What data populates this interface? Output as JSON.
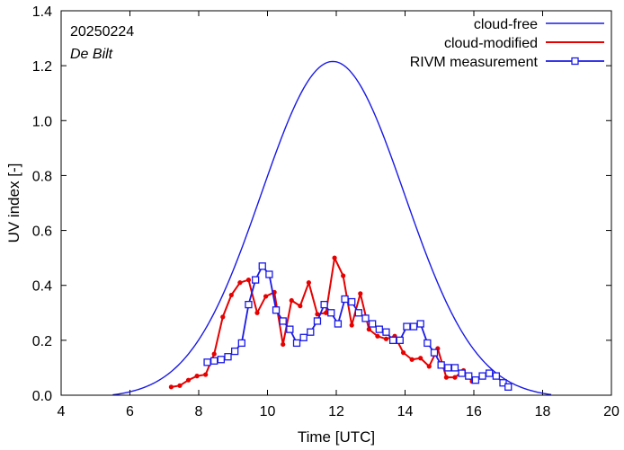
{
  "chart_data": {
    "type": "line",
    "annotations": {
      "date": "20250224",
      "station": "De Bilt"
    },
    "xlabel": "Time  [UTC]",
    "ylabel": "UV index  [-]",
    "xlim": [
      4,
      20
    ],
    "ylim": [
      0.0,
      1.4
    ],
    "x_ticks": [
      "4",
      "6",
      "8",
      "10",
      "12",
      "14",
      "16",
      "18",
      "20"
    ],
    "y_ticks": [
      "0.0",
      "0.2",
      "0.4",
      "0.6",
      "0.8",
      "1.0",
      "1.2",
      "1.4"
    ],
    "legend_position": "top-right",
    "colors": {
      "cloud_free": "#1a1ae6",
      "cloud_modified": "#e60000",
      "rivm": "#1a1ae6"
    },
    "series": [
      {
        "name": "cloud-free",
        "style": "line",
        "peak_time": 11.9,
        "peak_value": 1.225,
        "x": [
          5.8,
          6.0,
          6.5,
          7.0,
          7.5,
          8.0,
          8.5,
          9.0,
          9.5,
          10.0,
          10.5,
          11.0,
          11.5,
          11.9,
          12.5,
          13.0,
          13.5,
          14.0,
          14.5,
          15.0,
          15.5,
          16.0,
          16.5,
          17.0,
          17.5,
          17.9
        ],
        "values": [
          0.0,
          0.004,
          0.02,
          0.05,
          0.1,
          0.17,
          0.27,
          0.38,
          0.52,
          0.69,
          0.86,
          1.02,
          1.15,
          1.225,
          1.17,
          1.06,
          0.9,
          0.72,
          0.54,
          0.37,
          0.24,
          0.14,
          0.07,
          0.03,
          0.008,
          0.0
        ]
      },
      {
        "name": "cloud-modified",
        "style": "line-dots",
        "x": [
          7.2,
          7.45,
          7.7,
          7.95,
          8.2,
          8.45,
          8.7,
          8.95,
          9.2,
          9.45,
          9.7,
          9.95,
          10.2,
          10.45,
          10.7,
          10.95,
          11.2,
          11.45,
          11.7,
          11.95,
          12.2,
          12.45,
          12.7,
          12.95,
          13.2,
          13.45,
          13.7,
          13.95,
          14.2,
          14.45,
          14.7,
          14.95,
          15.2,
          15.45,
          15.7,
          15.95
        ],
        "values": [
          0.03,
          0.035,
          0.055,
          0.07,
          0.075,
          0.15,
          0.285,
          0.365,
          0.41,
          0.42,
          0.3,
          0.36,
          0.375,
          0.185,
          0.345,
          0.325,
          0.41,
          0.295,
          0.3,
          0.5,
          0.435,
          0.255,
          0.37,
          0.24,
          0.215,
          0.205,
          0.215,
          0.155,
          0.13,
          0.135,
          0.105,
          0.17,
          0.065,
          0.065,
          0.09,
          0.05
        ]
      },
      {
        "name": "RIVM measurement",
        "style": "line-squares",
        "x": [
          8.25,
          8.45,
          8.65,
          8.85,
          9.05,
          9.25,
          9.45,
          9.65,
          9.85,
          10.05,
          10.25,
          10.45,
          10.65,
          10.85,
          11.05,
          11.25,
          11.45,
          11.65,
          11.85,
          12.05,
          12.25,
          12.45,
          12.65,
          12.85,
          13.05,
          13.25,
          13.45,
          13.65,
          13.85,
          14.05,
          14.25,
          14.45,
          14.65,
          14.85,
          15.05,
          15.25,
          15.45,
          15.65,
          15.85,
          16.05,
          16.25,
          16.45,
          16.65,
          16.85,
          17.0
        ],
        "values": [
          0.12,
          0.125,
          0.13,
          0.14,
          0.16,
          0.19,
          0.33,
          0.42,
          0.47,
          0.44,
          0.31,
          0.27,
          0.24,
          0.19,
          0.21,
          0.23,
          0.27,
          0.33,
          0.3,
          0.26,
          0.35,
          0.34,
          0.3,
          0.28,
          0.26,
          0.24,
          0.23,
          0.2,
          0.2,
          0.25,
          0.25,
          0.26,
          0.19,
          0.155,
          0.11,
          0.1,
          0.1,
          0.08,
          0.07,
          0.055,
          0.07,
          0.08,
          0.07,
          0.045,
          0.03
        ]
      }
    ]
  }
}
